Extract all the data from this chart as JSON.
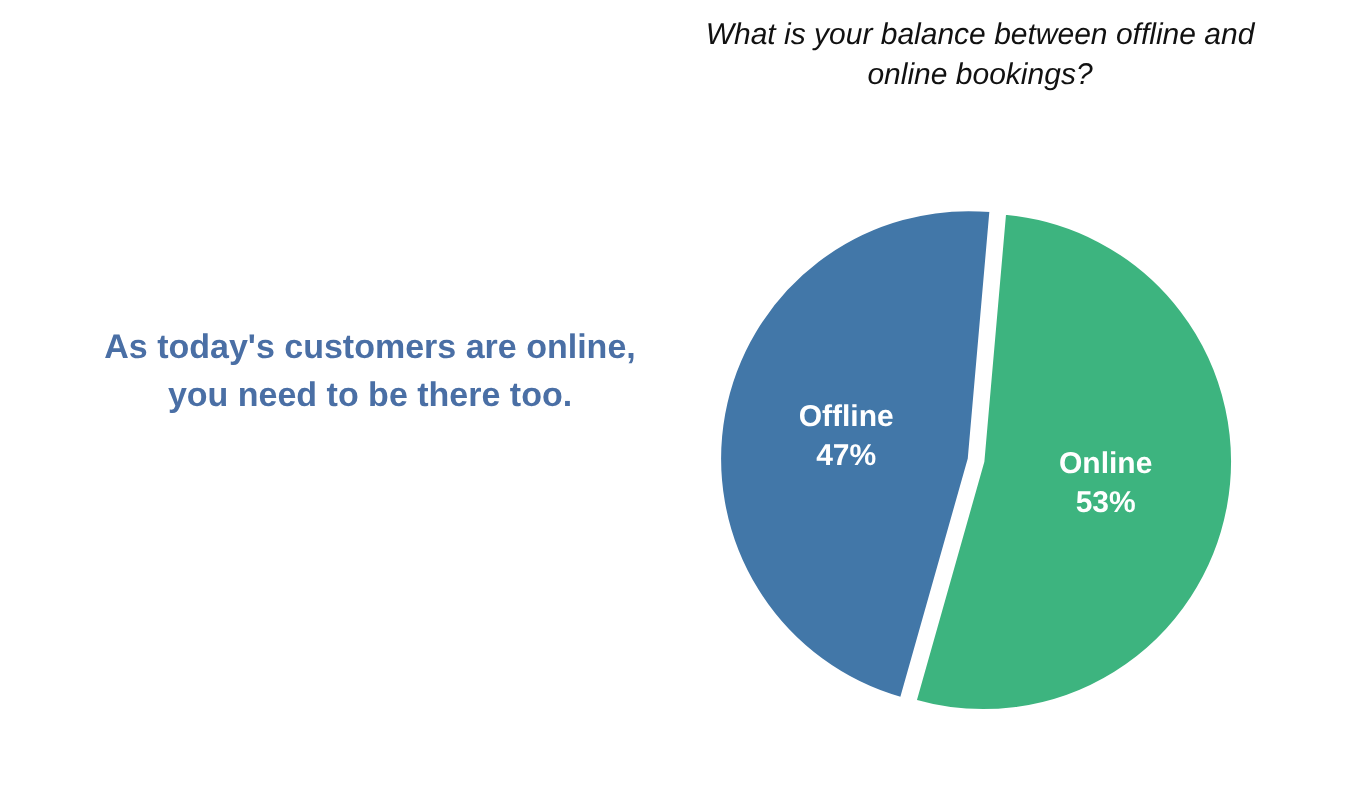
{
  "chart_data": {
    "type": "pie",
    "title": "What is your balance between offline and online bookings?",
    "categories": [
      "Online",
      "Offline"
    ],
    "values": [
      53,
      47
    ],
    "value_labels": [
      "53%",
      "47%"
    ],
    "colors": [
      "#3db47f",
      "#4277a8"
    ],
    "annotations": [
      "As today's customers are online, you need to be there too."
    ],
    "legend": false
  }
}
